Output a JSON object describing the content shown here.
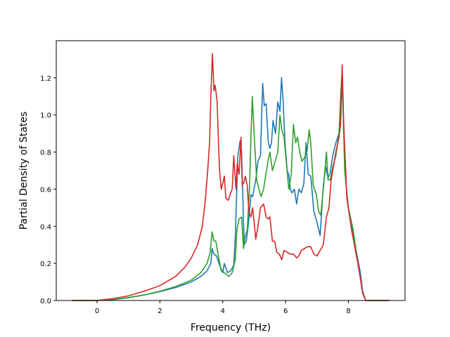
{
  "chart_data": {
    "type": "line",
    "title": "",
    "xlabel": "Frequency (THz)",
    "ylabel": "Partial Density of States",
    "xlim": [
      -1.3,
      9.8
    ],
    "ylim": [
      0.0,
      1.4
    ],
    "xticks": [
      0,
      2,
      4,
      6,
      8
    ],
    "xtick_labels": [
      "0",
      "2",
      "4",
      "6",
      "8"
    ],
    "yticks": [
      0.0,
      0.2,
      0.4,
      0.6,
      0.8,
      1.0,
      1.2
    ],
    "ytick_labels": [
      "0.0",
      "0.2",
      "0.4",
      "0.6",
      "0.8",
      "1.0",
      "1.2"
    ],
    "grid": false,
    "legend": "none",
    "series": [
      {
        "color": "#1f77b4",
        "x": [
          -0.8,
          0.0,
          0.5,
          1.0,
          1.5,
          2.0,
          2.5,
          3.0,
          3.3,
          3.5,
          3.62,
          3.66,
          3.72,
          3.8,
          3.9,
          4.0,
          4.05,
          4.15,
          4.25,
          4.35,
          4.4,
          4.48,
          4.55,
          4.6,
          4.68,
          4.75,
          4.82,
          4.9,
          4.95,
          5.05,
          5.12,
          5.2,
          5.27,
          5.32,
          5.38,
          5.45,
          5.5,
          5.55,
          5.6,
          5.68,
          5.75,
          5.82,
          5.87,
          5.92,
          5.98,
          6.05,
          6.1,
          6.15,
          6.2,
          6.28,
          6.35,
          6.42,
          6.5,
          6.58,
          6.65,
          6.72,
          6.8,
          6.9,
          7.0,
          7.1,
          7.2,
          7.28,
          7.35,
          7.42,
          7.5,
          7.6,
          7.7,
          7.76,
          7.8,
          7.85,
          7.95,
          8.1,
          8.3,
          8.38,
          8.45,
          8.55,
          9.3
        ],
        "y": [
          0.0,
          0.0,
          0.005,
          0.015,
          0.03,
          0.048,
          0.07,
          0.1,
          0.13,
          0.16,
          0.2,
          0.28,
          0.25,
          0.24,
          0.19,
          0.15,
          0.2,
          0.15,
          0.16,
          0.19,
          0.35,
          0.78,
          0.86,
          0.8,
          0.3,
          0.32,
          0.42,
          0.57,
          0.56,
          0.65,
          0.75,
          0.78,
          1.17,
          1.05,
          1.06,
          0.85,
          0.82,
          0.85,
          0.97,
          0.9,
          1.07,
          1.02,
          1.2,
          1.08,
          0.85,
          0.7,
          0.68,
          0.6,
          0.58,
          0.6,
          0.52,
          0.6,
          0.58,
          0.63,
          0.85,
          0.68,
          0.67,
          0.48,
          0.42,
          0.35,
          0.62,
          0.72,
          0.66,
          0.69,
          0.78,
          0.85,
          0.9,
          1.0,
          1.22,
          0.9,
          0.55,
          0.4,
          0.22,
          0.15,
          0.05,
          0.0,
          0.0
        ]
      },
      {
        "color": "#2ca02c",
        "x": [
          -0.8,
          0.0,
          0.5,
          1.0,
          1.5,
          2.0,
          2.5,
          3.0,
          3.3,
          3.5,
          3.6,
          3.66,
          3.72,
          3.78,
          3.85,
          3.95,
          4.05,
          4.12,
          4.2,
          4.3,
          4.4,
          4.45,
          4.52,
          4.6,
          4.66,
          4.72,
          4.78,
          4.85,
          4.9,
          4.94,
          5.0,
          5.08,
          5.15,
          5.22,
          5.3,
          5.38,
          5.45,
          5.5,
          5.58,
          5.65,
          5.75,
          5.82,
          5.88,
          5.95,
          6.02,
          6.1,
          6.18,
          6.25,
          6.32,
          6.38,
          6.45,
          6.52,
          6.6,
          6.68,
          6.75,
          6.8,
          6.88,
          6.98,
          7.05,
          7.12,
          7.2,
          7.3,
          7.35,
          7.42,
          7.5,
          7.6,
          7.7,
          7.75,
          7.8,
          7.88,
          8.0,
          8.15,
          8.3,
          8.38,
          8.45,
          8.55,
          9.3
        ],
        "y": [
          0.0,
          0.0,
          0.005,
          0.016,
          0.03,
          0.05,
          0.075,
          0.11,
          0.15,
          0.2,
          0.26,
          0.37,
          0.32,
          0.32,
          0.25,
          0.16,
          0.15,
          0.14,
          0.13,
          0.15,
          0.22,
          0.38,
          0.44,
          0.45,
          0.28,
          0.35,
          0.38,
          0.6,
          0.9,
          1.1,
          0.89,
          0.65,
          0.6,
          0.56,
          0.6,
          0.69,
          0.76,
          0.8,
          0.7,
          0.74,
          0.8,
          1.0,
          0.92,
          0.88,
          0.75,
          0.6,
          0.68,
          0.95,
          0.85,
          0.88,
          0.8,
          0.75,
          0.77,
          0.8,
          0.92,
          0.85,
          0.62,
          0.57,
          0.48,
          0.46,
          0.6,
          0.8,
          0.65,
          0.65,
          0.72,
          0.78,
          0.9,
          1.1,
          1.24,
          0.7,
          0.5,
          0.38,
          0.2,
          0.12,
          0.04,
          0.0,
          0.0
        ]
      },
      {
        "color": "#d62728",
        "x": [
          -0.8,
          0.0,
          0.5,
          1.0,
          1.5,
          2.0,
          2.5,
          2.8,
          3.0,
          3.2,
          3.35,
          3.45,
          3.52,
          3.58,
          3.62,
          3.67,
          3.72,
          3.76,
          3.82,
          3.87,
          3.9,
          3.95,
          4.0,
          4.05,
          4.1,
          4.18,
          4.25,
          4.3,
          4.35,
          4.42,
          4.46,
          4.52,
          4.58,
          4.62,
          4.68,
          4.72,
          4.78,
          4.83,
          4.9,
          4.95,
          5.0,
          5.05,
          5.12,
          5.2,
          5.3,
          5.38,
          5.45,
          5.5,
          5.58,
          5.65,
          5.72,
          5.8,
          5.88,
          5.95,
          6.05,
          6.15,
          6.25,
          6.35,
          6.42,
          6.5,
          6.6,
          6.7,
          6.8,
          6.9,
          7.0,
          7.1,
          7.2,
          7.3,
          7.38,
          7.45,
          7.5,
          7.55,
          7.6,
          7.7,
          7.75,
          7.8,
          7.85,
          7.95,
          8.1,
          8.3,
          8.38,
          8.45,
          8.55,
          9.3
        ],
        "y": [
          0.0,
          0.0,
          0.01,
          0.025,
          0.05,
          0.08,
          0.13,
          0.18,
          0.23,
          0.3,
          0.4,
          0.55,
          0.7,
          0.85,
          1.1,
          1.33,
          1.13,
          1.16,
          1.07,
          0.82,
          0.7,
          0.6,
          0.63,
          0.67,
          0.55,
          0.54,
          0.58,
          0.6,
          0.78,
          0.6,
          0.74,
          0.68,
          0.88,
          0.62,
          0.64,
          0.67,
          0.62,
          0.48,
          0.45,
          0.5,
          0.42,
          0.33,
          0.4,
          0.5,
          0.52,
          0.45,
          0.44,
          0.45,
          0.32,
          0.32,
          0.26,
          0.25,
          0.22,
          0.27,
          0.26,
          0.25,
          0.25,
          0.23,
          0.24,
          0.27,
          0.28,
          0.29,
          0.29,
          0.25,
          0.24,
          0.27,
          0.3,
          0.45,
          0.5,
          0.65,
          0.7,
          0.75,
          0.8,
          0.88,
          0.95,
          1.27,
          0.95,
          0.55,
          0.38,
          0.2,
          0.12,
          0.04,
          0.0,
          0.0
        ]
      }
    ]
  }
}
